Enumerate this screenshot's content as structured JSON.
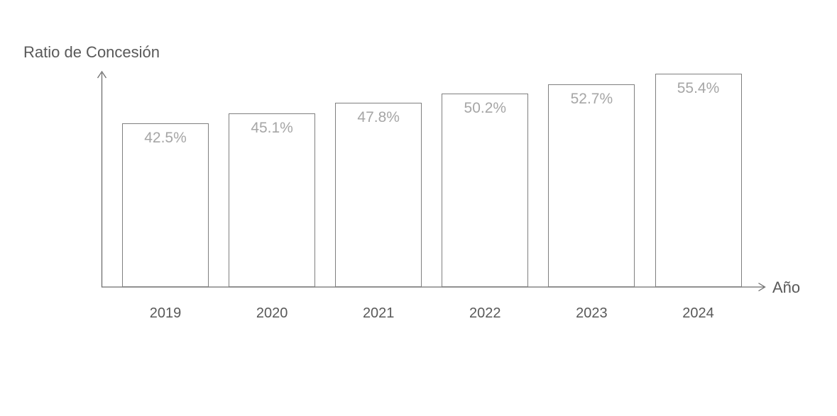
{
  "chart_data": {
    "type": "bar",
    "title": "",
    "ylabel": "Ratio de Concesión",
    "xlabel": "Año",
    "categories": [
      "2019",
      "2020",
      "2021",
      "2022",
      "2023",
      "2024"
    ],
    "values": [
      42.5,
      45.1,
      47.8,
      50.2,
      52.7,
      55.4
    ],
    "value_labels": [
      "42.5%",
      "45.1%",
      "47.8%",
      "50.2%",
      "52.7%",
      "55.4%"
    ],
    "ylim": [
      0,
      60
    ],
    "grid": false,
    "legend": false,
    "colors": {
      "background": "#ffffff",
      "bar_fill": "#ffffff",
      "bar_border": "#7f7f7f",
      "value_label": "#a6a6a6",
      "axis_line": "#6e6e6e",
      "text": "#595959"
    }
  }
}
